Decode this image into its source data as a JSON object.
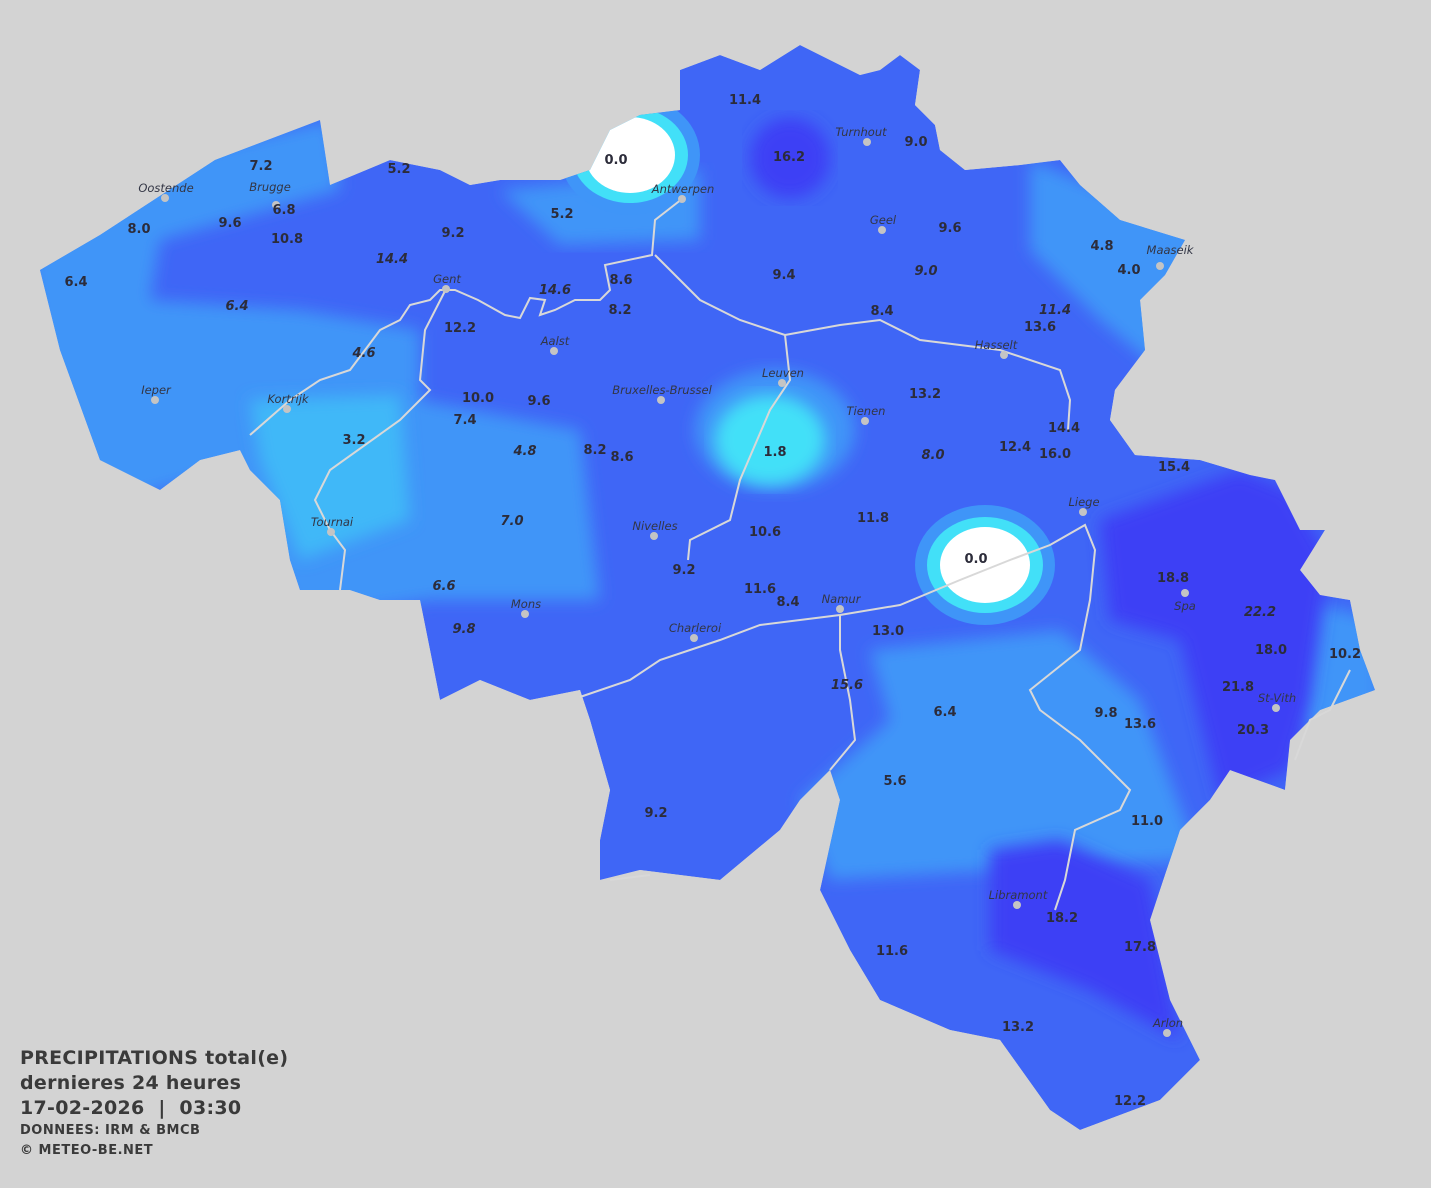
{
  "map": {
    "colors": {
      "background": "#d3d3d3",
      "base": "#3f66f6",
      "light": "#3f95f8",
      "lighter": "#40b8f8",
      "cyan": "#42e0f8",
      "dark": "#3c3ff5",
      "zero": "#ffffff",
      "river": "#d8d8d8"
    },
    "values": [
      {
        "text": "11.4",
        "italic": false
      },
      {
        "text": "16.2",
        "italic": false
      },
      {
        "text": "9.0",
        "italic": false
      },
      {
        "text": "7.2",
        "italic": false
      },
      {
        "text": "5.2",
        "italic": false
      },
      {
        "text": "0.0",
        "italic": false
      },
      {
        "text": "8.0",
        "italic": false
      },
      {
        "text": "9.6",
        "italic": false
      },
      {
        "text": "6.8",
        "italic": false
      },
      {
        "text": "10.8",
        "italic": false
      },
      {
        "text": "5.2",
        "italic": false
      },
      {
        "text": "9.2",
        "italic": false
      },
      {
        "text": "14.4",
        "italic": true
      },
      {
        "text": "6.4",
        "italic": false
      },
      {
        "text": "6.4",
        "italic": true
      },
      {
        "text": "14.6",
        "italic": true
      },
      {
        "text": "8.6",
        "italic": false
      },
      {
        "text": "8.2",
        "italic": false
      },
      {
        "text": "12.2",
        "italic": false
      },
      {
        "text": "4.6",
        "italic": true
      },
      {
        "text": "9.6",
        "italic": false
      },
      {
        "text": "4.8",
        "italic": false
      },
      {
        "text": "4.0",
        "italic": false
      },
      {
        "text": "9.4",
        "italic": false
      },
      {
        "text": "9.0",
        "italic": true
      },
      {
        "text": "8.4",
        "italic": false
      },
      {
        "text": "11.4",
        "italic": true
      },
      {
        "text": "13.6",
        "italic": false
      },
      {
        "text": "10.0",
        "italic": false
      },
      {
        "text": "9.6",
        "italic": false
      },
      {
        "text": "7.4",
        "italic": false
      },
      {
        "text": "3.2",
        "italic": false
      },
      {
        "text": "4.8",
        "italic": true
      },
      {
        "text": "8.2",
        "italic": false
      },
      {
        "text": "8.6",
        "italic": false
      },
      {
        "text": "1.8",
        "italic": false
      },
      {
        "text": "13.2",
        "italic": false
      },
      {
        "text": "14.4",
        "italic": false
      },
      {
        "text": "12.4",
        "italic": false
      },
      {
        "text": "16.0",
        "italic": false
      },
      {
        "text": "8.0",
        "italic": true
      },
      {
        "text": "15.4",
        "italic": false
      },
      {
        "text": "7.0",
        "italic": true
      },
      {
        "text": "10.6",
        "italic": false
      },
      {
        "text": "11.8",
        "italic": false
      },
      {
        "text": "0.0",
        "italic": false
      },
      {
        "text": "9.2",
        "italic": false
      },
      {
        "text": "11.6",
        "italic": false
      },
      {
        "text": "8.4",
        "italic": false
      },
      {
        "text": "18.8",
        "italic": false
      },
      {
        "text": "22.2",
        "italic": true
      },
      {
        "text": "6.6",
        "italic": true
      },
      {
        "text": "9.8",
        "italic": true
      },
      {
        "text": "13.0",
        "italic": false
      },
      {
        "text": "18.0",
        "italic": false
      },
      {
        "text": "10.2",
        "italic": false
      },
      {
        "text": "15.6",
        "italic": true
      },
      {
        "text": "21.8",
        "italic": false
      },
      {
        "text": "6.4",
        "italic": false
      },
      {
        "text": "9.8",
        "italic": false
      },
      {
        "text": "13.6",
        "italic": false
      },
      {
        "text": "20.3",
        "italic": false
      },
      {
        "text": "5.6",
        "italic": false
      },
      {
        "text": "9.2",
        "italic": false
      },
      {
        "text": "11.0",
        "italic": false
      },
      {
        "text": "18.2",
        "italic": false
      },
      {
        "text": "17.8",
        "italic": false
      },
      {
        "text": "11.6",
        "italic": false
      },
      {
        "text": "13.2",
        "italic": false
      },
      {
        "text": "12.2",
        "italic": false
      }
    ],
    "cities": [
      "Oostende",
      "Brugge",
      "Antwerpen",
      "Turnhout",
      "Geel",
      "Maaseik",
      "Gent",
      "Aalst",
      "Hasselt",
      "Leuven",
      "Ieper",
      "Bruxelles-Brussel",
      "Kortrijk",
      "Tienen",
      "Liege",
      "Tournai",
      "Nivelles",
      "Spa",
      "Mons",
      "Namur",
      "Charleroi",
      "St-Vith",
      "Libramont",
      "Arlon"
    ]
  },
  "legend": {
    "title": "PRECIPITATIONS total(e)",
    "period": "dernieres 24 heures",
    "datetime": "17-02-2026  |  03:30",
    "source": "DONNEES: IRM & BMCB",
    "copyright": "© METEO-BE.NET"
  }
}
